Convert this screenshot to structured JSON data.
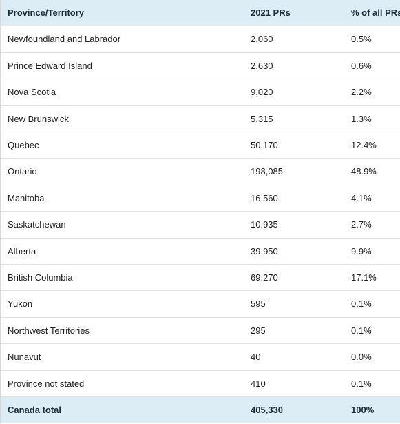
{
  "table": {
    "header": [
      "Province/Territory",
      "2021 PRs",
      "% of all PRs"
    ],
    "rows": [
      [
        "Newfoundland and Labrador",
        "2,060",
        "0.5%"
      ],
      [
        "Prince Edward Island",
        "2,630",
        "0.6%"
      ],
      [
        "Nova Scotia",
        "9,020",
        "2.2%"
      ],
      [
        "New Brunswick",
        "5,315",
        "1.3%"
      ],
      [
        "Quebec",
        "50,170",
        "12.4%"
      ],
      [
        "Ontario",
        "198,085",
        "48.9%"
      ],
      [
        "Manitoba",
        "16,560",
        "4.1%"
      ],
      [
        "Saskatchewan",
        "10,935",
        "2.7%"
      ],
      [
        "Alberta",
        "39,950",
        "9.9%"
      ],
      [
        "British Columbia",
        "69,270",
        "17.1%"
      ],
      [
        "Yukon",
        "595",
        "0.1%"
      ],
      [
        "Northwest Territories",
        "295",
        "0.1%"
      ],
      [
        "Nunavut",
        "40",
        "0.0%"
      ],
      [
        "Province not stated",
        "410",
        "0.1%"
      ]
    ],
    "total": [
      "Canada total",
      "405,330",
      "100%"
    ]
  }
}
